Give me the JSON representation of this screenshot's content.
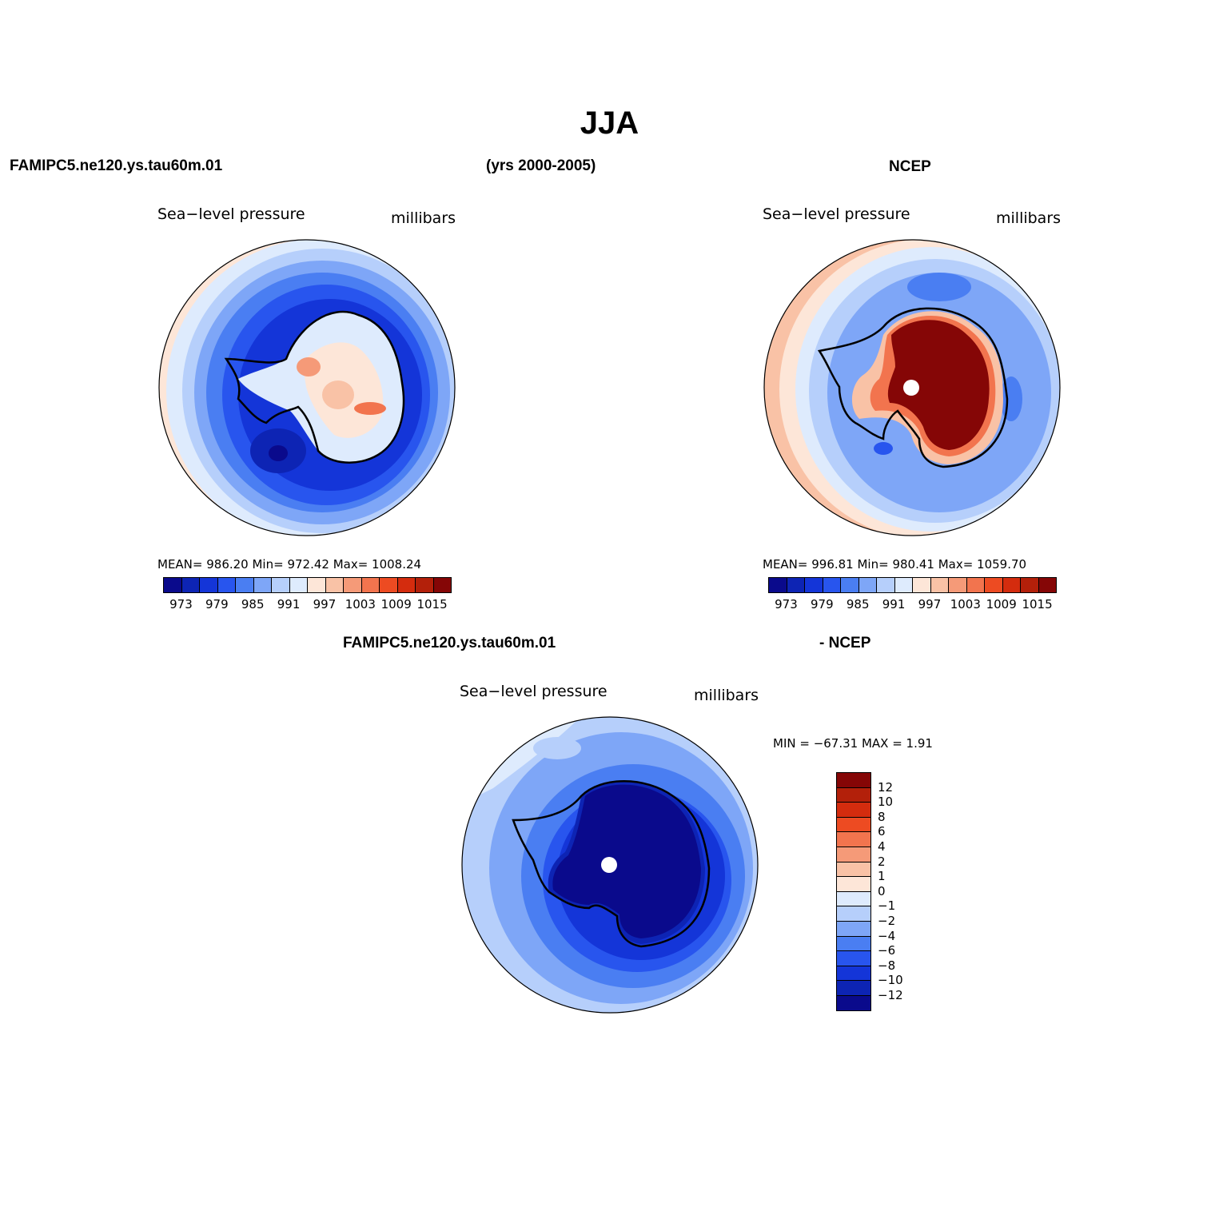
{
  "title": "JJA",
  "header": {
    "left": "FAMIPC5.ne120.ys.tau60m.01",
    "center": "(yrs 2000-2005)",
    "right": "NCEP"
  },
  "bottom_header": {
    "left": "FAMIPC5.ne120.ys.tau60m.01",
    "right": "- NCEP"
  },
  "panels": [
    {
      "field_label": "Sea−level pressure",
      "units_label": "millibars",
      "stats": "MEAN=  986.20    Min=  972.42    Max=  1008.24"
    },
    {
      "field_label": "Sea−level pressure",
      "units_label": "millibars",
      "stats": "MEAN=  996.81    Min=  980.41    Max=  1059.70"
    },
    {
      "field_label": "Sea−level pressure",
      "units_label": "millibars",
      "stats": "MIN  =  −67.31   MAX  =      1.91"
    }
  ],
  "colorbar_horizontal": {
    "tick_labels": [
      "973",
      "979",
      "985",
      "991",
      "997",
      "1003",
      "1009",
      "1015"
    ],
    "colors": [
      "#0a0a8c",
      "#0d24b4",
      "#1435d8",
      "#2855ee",
      "#4a7ef2",
      "#7ea6f7",
      "#b6cffb",
      "#deebfd",
      "#fde6d8",
      "#f9c2a6",
      "#f59a78",
      "#f2744e",
      "#ed4b22",
      "#d42c0e",
      "#b3200a",
      "#850606"
    ]
  },
  "colorbar_vertical": {
    "tick_labels": [
      "12",
      "10",
      "8",
      "6",
      "4",
      "2",
      "1",
      "0",
      "−1",
      "−2",
      "−4",
      "−6",
      "−8",
      "−10",
      "−12"
    ],
    "colors": [
      "#850606",
      "#b3200a",
      "#d42c0e",
      "#ed4b22",
      "#f2744e",
      "#f59a78",
      "#f9c2a6",
      "#fde6d8",
      "#deebfd",
      "#b6cffb",
      "#7ea6f7",
      "#4a7ef2",
      "#2855ee",
      "#1435d8",
      "#0d24b4",
      "#0a0a8c"
    ]
  },
  "map_palette": {
    "ocean_deep": "#1435d8",
    "ocean_mid": "#2855ee",
    "ocean_light": "#4a7ef2",
    "ocean_pale": "#7ea6f7",
    "ocean_paler": "#b6cffb",
    "ocean_palest": "#deebfd",
    "warm_pale": "#fde6d8",
    "warm_light": "#f9c2a6",
    "warm_mid": "#f59a78",
    "hot": "#850606",
    "deep_blue": "#0a0a8c"
  }
}
